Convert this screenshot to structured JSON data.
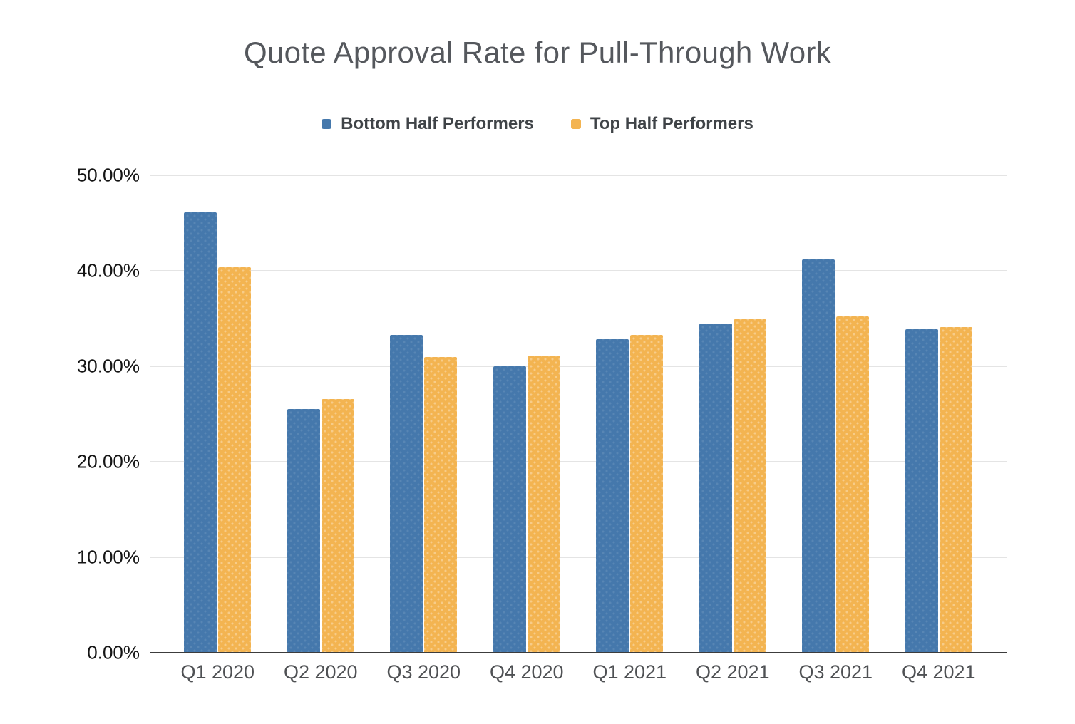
{
  "title": "Quote Approval Rate for Pull-Through Work",
  "legend": [
    {
      "label": "Bottom Half Performers",
      "color": "#4578AC"
    },
    {
      "label": "Top Half Performers",
      "color": "#F3B451"
    }
  ],
  "colors": {
    "bottom_half": "#4578AC",
    "top_half": "#F3B451",
    "gridline": "#E4E4E4",
    "axis_line": "#3C3C3C",
    "title_text": "#55585D",
    "axis_label_text": "#4F5154"
  },
  "chart_data": {
    "type": "bar",
    "title": "Quote Approval Rate for Pull-Through Work",
    "categories": [
      "Q1 2020",
      "Q2 2020",
      "Q3 2020",
      "Q4 2020",
      "Q1 2021",
      "Q2 2021",
      "Q3 2021",
      "Q4 2021"
    ],
    "series": [
      {
        "name": "Bottom Half Performers",
        "color": "#4578AC",
        "values": [
          46.1,
          25.5,
          33.3,
          30.0,
          32.8,
          34.5,
          41.2,
          33.9
        ]
      },
      {
        "name": "Top Half Performers",
        "color": "#F3B451",
        "values": [
          40.4,
          26.6,
          31.0,
          31.1,
          33.3,
          34.9,
          35.2,
          34.1
        ]
      }
    ],
    "xlabel": "",
    "ylabel": "",
    "ylim": [
      0,
      50
    ],
    "ytick_step": 10,
    "ytick_labels": [
      "0.00%",
      "10.00%",
      "20.00%",
      "30.00%",
      "40.00%",
      "50.00%"
    ],
    "grid": true,
    "legend_position": "top",
    "value_unit": "percent"
  }
}
